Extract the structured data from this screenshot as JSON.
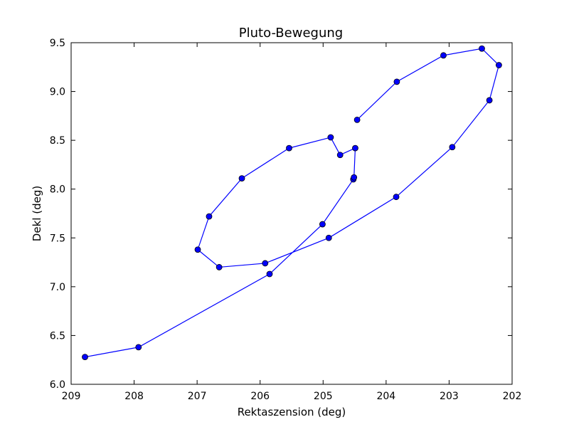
{
  "chart_data": {
    "type": "line",
    "title": "Pluto-Bewegung",
    "xlabel": "Rektaszension (deg)",
    "ylabel": "Dekl (deg)",
    "xlim": [
      209,
      202
    ],
    "ylim": [
      6.0,
      9.5
    ],
    "x_ticks": [
      209,
      208,
      207,
      206,
      205,
      204,
      203,
      202
    ],
    "x_tick_labels": [
      "209",
      "208",
      "207",
      "206",
      "205",
      "204",
      "203",
      "202"
    ],
    "y_ticks": [
      6.0,
      6.5,
      7.0,
      7.5,
      8.0,
      8.5,
      9.0,
      9.5
    ],
    "y_tick_labels": [
      "6.0",
      "6.5",
      "7.0",
      "7.5",
      "8.0",
      "8.5",
      "9.0",
      "9.5"
    ],
    "grid": false,
    "series": [
      {
        "color": "#0000ff",
        "marker": "circle",
        "x": [
          208.78,
          207.93,
          205.85,
          205.01,
          204.52,
          204.51,
          204.49,
          204.73,
          204.88,
          205.54,
          206.29,
          206.81,
          206.99,
          206.65,
          205.92,
          204.91,
          203.84,
          202.95,
          202.36,
          202.21,
          202.48,
          203.09,
          203.83,
          204.46
        ],
        "y": [
          6.28,
          6.38,
          7.13,
          7.64,
          8.1,
          8.12,
          8.42,
          8.35,
          8.53,
          8.42,
          8.11,
          7.72,
          7.38,
          7.2,
          7.24,
          7.5,
          7.92,
          8.43,
          8.91,
          9.27,
          9.44,
          9.37,
          9.1,
          8.71
        ]
      }
    ]
  }
}
